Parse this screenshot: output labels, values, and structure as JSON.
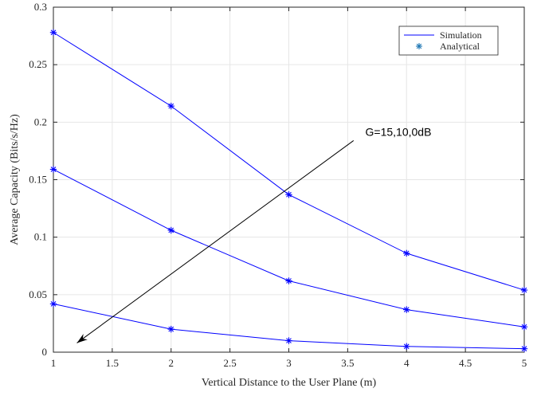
{
  "chart_data": {
    "type": "line",
    "title": "",
    "xlabel": "Vertical Distance to the User Plane (m)",
    "ylabel": "Average Capacity (Bits/s/Hz)",
    "xlim": [
      1,
      5
    ],
    "ylim": [
      0,
      0.3
    ],
    "xticks": [
      "1",
      "1.5",
      "2",
      "2.5",
      "3",
      "3.5",
      "4",
      "4.5",
      "5"
    ],
    "yticks": [
      "0",
      "0.05",
      "0.1",
      "0.15",
      "0.2",
      "0.25",
      "0.3"
    ],
    "grid": true,
    "legend_position": "top-right",
    "legend": [
      {
        "label": "Simulation",
        "marker": "line"
      },
      {
        "label": "Analytical",
        "marker": "asterisk"
      }
    ],
    "x": [
      1,
      2,
      3,
      4,
      5
    ],
    "series": [
      {
        "values": [
          0.278,
          0.214,
          0.137,
          0.086,
          0.054
        ]
      },
      {
        "values": [
          0.159,
          0.106,
          0.062,
          0.037,
          0.022
        ]
      },
      {
        "values": [
          0.042,
          0.02,
          0.01,
          0.005,
          0.003
        ]
      }
    ],
    "annotation": {
      "text": "G=15,10,0dB",
      "arrow_from": [
        3.55,
        0.184
      ],
      "arrow_to": [
        1.2,
        0.008
      ],
      "text_anchor": [
        3.65,
        0.188
      ]
    },
    "colors": {
      "line": "#0000ff",
      "marker": "#1f77b4",
      "arrow": "#000000"
    }
  }
}
